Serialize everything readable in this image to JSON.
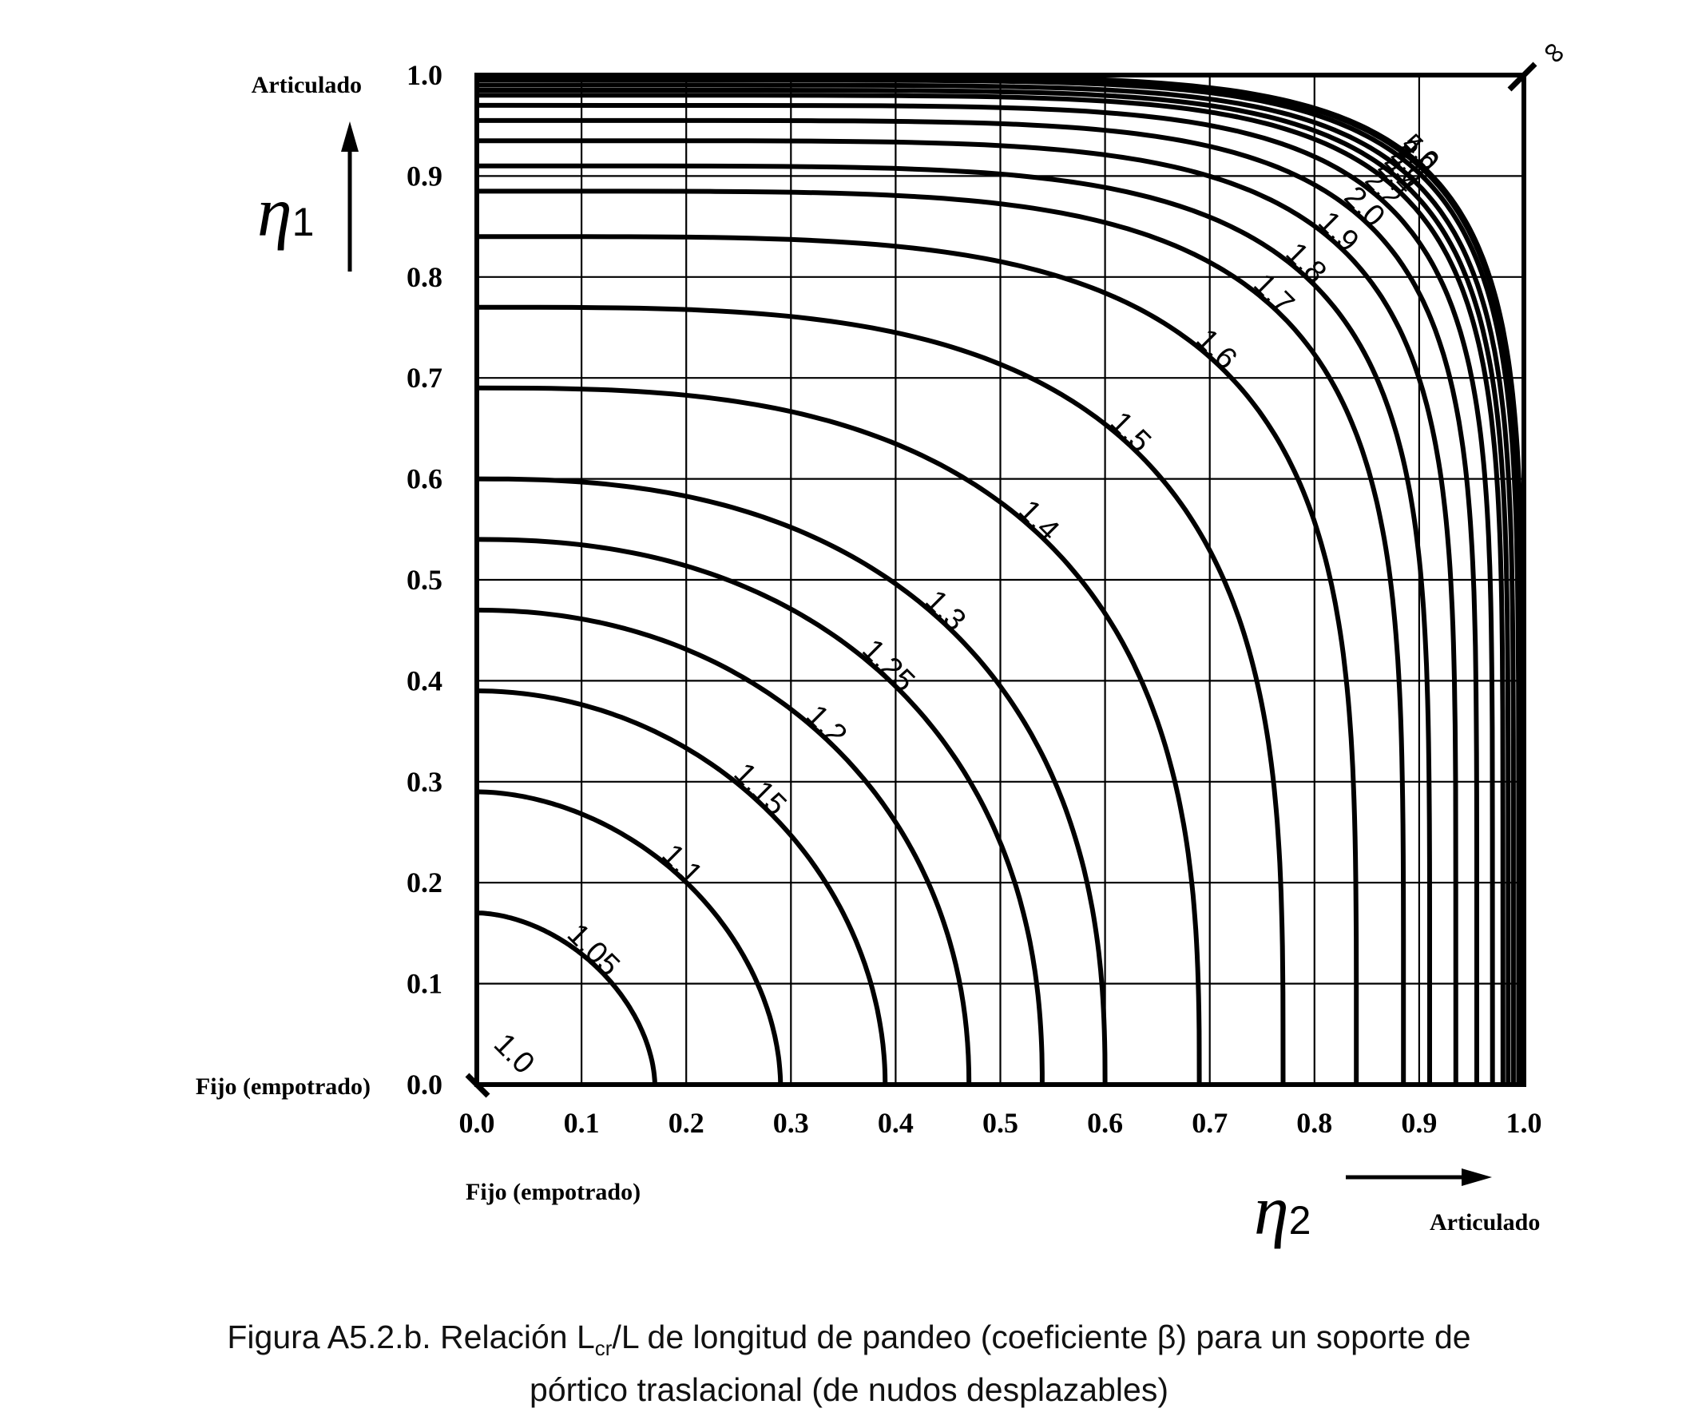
{
  "chart_data": {
    "type": "line",
    "title": "",
    "x_axis": {
      "symbol": "η",
      "subscript": "2",
      "range": [
        0.0,
        1.0
      ],
      "ticks": [
        "0.0",
        "0.1",
        "0.2",
        "0.3",
        "0.4",
        "0.5",
        "0.6",
        "0.7",
        "0.8",
        "0.9",
        "1.0"
      ],
      "low_label": "Fijo (empotrado)",
      "high_label": "Articulado"
    },
    "y_axis": {
      "symbol": "η",
      "subscript": "1",
      "range": [
        0.0,
        1.0
      ],
      "ticks": [
        "0.0",
        "0.1",
        "0.2",
        "0.3",
        "0.4",
        "0.5",
        "0.6",
        "0.7",
        "0.8",
        "0.9",
        "1.0"
      ],
      "low_label": "Fijo (empotrado)",
      "high_label": "Articulado"
    },
    "grid": true,
    "curves": [
      {
        "label": "1.0",
        "intercept": 0.0
      },
      {
        "label": "1.05",
        "intercept": 0.17
      },
      {
        "label": "1.1",
        "intercept": 0.29
      },
      {
        "label": "1.15",
        "intercept": 0.39
      },
      {
        "label": "1.2",
        "intercept": 0.47
      },
      {
        "label": "1.25",
        "intercept": 0.54
      },
      {
        "label": "1.3",
        "intercept": 0.6
      },
      {
        "label": "1.4",
        "intercept": 0.69
      },
      {
        "label": "1.5",
        "intercept": 0.77
      },
      {
        "label": "1.6",
        "intercept": 0.84
      },
      {
        "label": "1.7",
        "intercept": 0.885
      },
      {
        "label": "1.8",
        "intercept": 0.91
      },
      {
        "label": "1.9",
        "intercept": 0.935
      },
      {
        "label": "2.0",
        "intercept": 0.955
      },
      {
        "label": "2.2",
        "intercept": 0.97
      },
      {
        "label": "2.4",
        "intercept": 0.98
      },
      {
        "label": "2.6",
        "intercept": 0.985
      },
      {
        "label": "2.8",
        "intercept": 0.99
      },
      {
        "label": "3.0",
        "intercept": 0.995
      },
      {
        "label": "4.0",
        "intercept": 0.998
      },
      {
        "label": "5.0",
        "intercept": 0.999
      },
      {
        "label": "∞",
        "intercept": 1.0
      }
    ]
  },
  "caption": {
    "line1_before": "Figura A5.2.b. Relación L",
    "line1_sub": "cr",
    "line1_after": "/L de longitud de pandeo (coeficiente β) para un soporte de",
    "line2": "pórtico traslacional (de nudos desplazables)"
  }
}
